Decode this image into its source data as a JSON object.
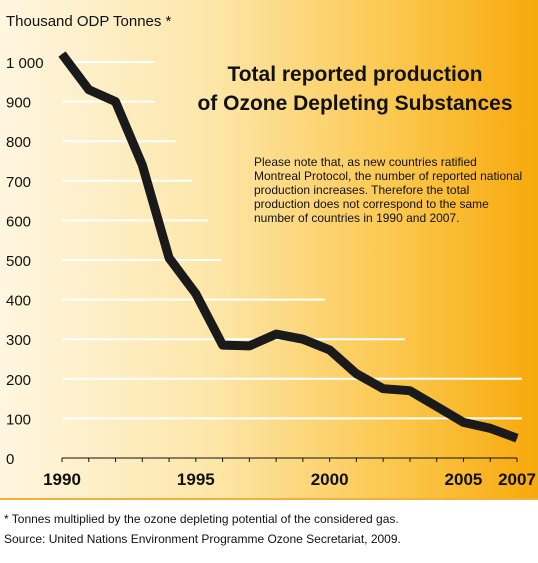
{
  "chart_data": {
    "type": "line",
    "title": "Total reported production\nof Ozone Depleting Substances",
    "ylabel": "Thousand ODP Tonnes *",
    "xlabel": "",
    "x": [
      1990,
      1991,
      1992,
      1993,
      1994,
      1995,
      1996,
      1997,
      1998,
      1999,
      2000,
      2001,
      2002,
      2003,
      2004,
      2005,
      2006,
      2007
    ],
    "series": [
      {
        "values": [
          1020,
          930,
          900,
          740,
          505,
          415,
          285,
          283,
          313,
          300,
          273,
          213,
          175,
          170,
          130,
          90,
          75,
          50
        ]
      }
    ],
    "xticks": [
      1990,
      1995,
      2000,
      2005,
      2007
    ],
    "xtick_labels": [
      "1990",
      "1995",
      "2000",
      "2005",
      "2007"
    ],
    "yticks": [
      0,
      100,
      200,
      300,
      400,
      500,
      600,
      700,
      800,
      900,
      1000
    ],
    "ytick_labels": [
      "0",
      "100",
      "200",
      "300",
      "400",
      "500",
      "600",
      "700",
      "800",
      "900",
      "1 000"
    ],
    "ylim": [
      0,
      1000
    ],
    "xlim": [
      1990,
      2007
    ],
    "grid": "horizontal"
  },
  "note": "Please note that, as new countries ratified Montreal Protocol, the number of reported national production increases. Therefore the total production does not correspond to the same number of countries in 1990 and 2007.",
  "footnote": "* Tonnes multiplied by the ozone depleting potential of the considered gas.",
  "source": "Source: United Nations Environment Programme Ozone Secretariat, 2009.",
  "colors": {
    "line": "#1a1a1a",
    "grid": "#ffffff",
    "background_left": "#fff6e0",
    "background_right": "#f7a90c"
  }
}
